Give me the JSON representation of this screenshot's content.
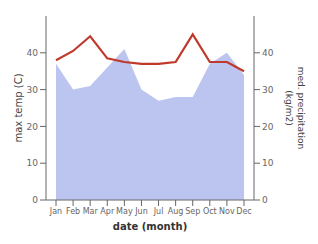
{
  "chart_data": {
    "type": "line",
    "categories": [
      "Jan",
      "Feb",
      "Mar",
      "Apr",
      "May",
      "Jun",
      "Jul",
      "Aug",
      "Sep",
      "Oct",
      "Nov",
      "Dec"
    ],
    "series": [
      {
        "type": "area",
        "axis": "y2",
        "color": "#bcc5f0",
        "values": [
          37,
          30,
          31,
          36,
          41,
          30,
          27,
          28,
          28,
          37,
          40,
          34
        ]
      },
      {
        "type": "line",
        "color": "#c0392b",
        "values": [
          38.0,
          40.5,
          44.5,
          38.5,
          37.5,
          37.0,
          37.0,
          37.5,
          45.0,
          37.5,
          37.5,
          35.0
        ]
      }
    ],
    "xlabel": "date (month)",
    "ylabel": "max temp (C)",
    "y2label": "med. precipitation\n(kg/m2)",
    "ylim": [
      0,
      50
    ],
    "yticks": [
      0,
      10,
      20,
      30,
      40
    ],
    "y2lim": [
      0,
      50
    ],
    "y2ticks": [
      0,
      10,
      20,
      30,
      40
    ],
    "grid": false
  }
}
